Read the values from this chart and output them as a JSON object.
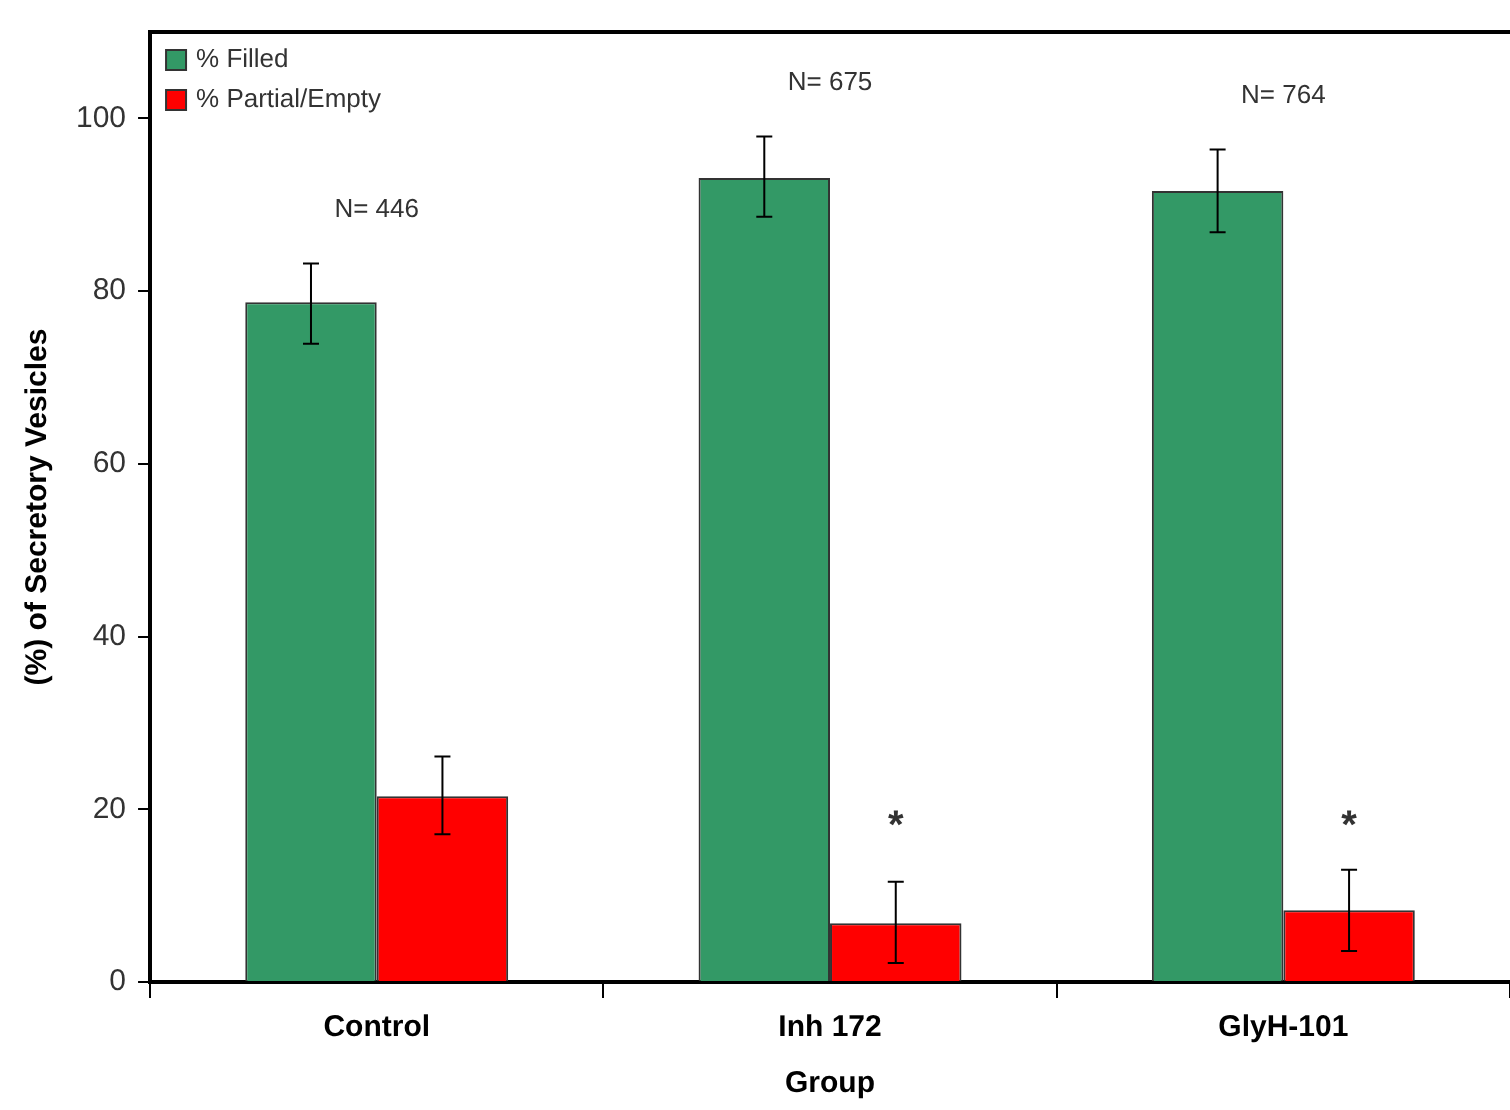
{
  "chart_data": {
    "type": "bar",
    "xlabel": "Group",
    "ylabel": "(%) of Secretory Vesicles",
    "categories": [
      "Control",
      "Inh 172",
      "GlyH-101"
    ],
    "series": [
      {
        "name": "% Filled",
        "color": "#339966",
        "values": [
          78.7,
          93.1,
          91.6
        ],
        "errors": [
          [
            73.9,
            83.2
          ],
          [
            88.6,
            97.9
          ],
          [
            86.8,
            96.4
          ]
        ]
      },
      {
        "name": "% Partial/Empty",
        "color": "#ff0000",
        "values": [
          21.5,
          6.8,
          8.3
        ],
        "errors": [
          [
            17.1,
            26.1
          ],
          [
            2.2,
            11.6
          ],
          [
            3.6,
            13.0
          ]
        ]
      }
    ],
    "ylim": [
      0,
      110
    ],
    "yticks": [
      0,
      20,
      40,
      60,
      80,
      100
    ],
    "grid": false,
    "legend": "top left",
    "annotations": [
      "N= 446",
      "N= 675",
      "N= 764",
      {
        "text": "*",
        "x": "Inh 172",
        "y": 17.9
      },
      {
        "text": "*",
        "x": "GlyH-101",
        "y": 17.9
      }
    ]
  }
}
